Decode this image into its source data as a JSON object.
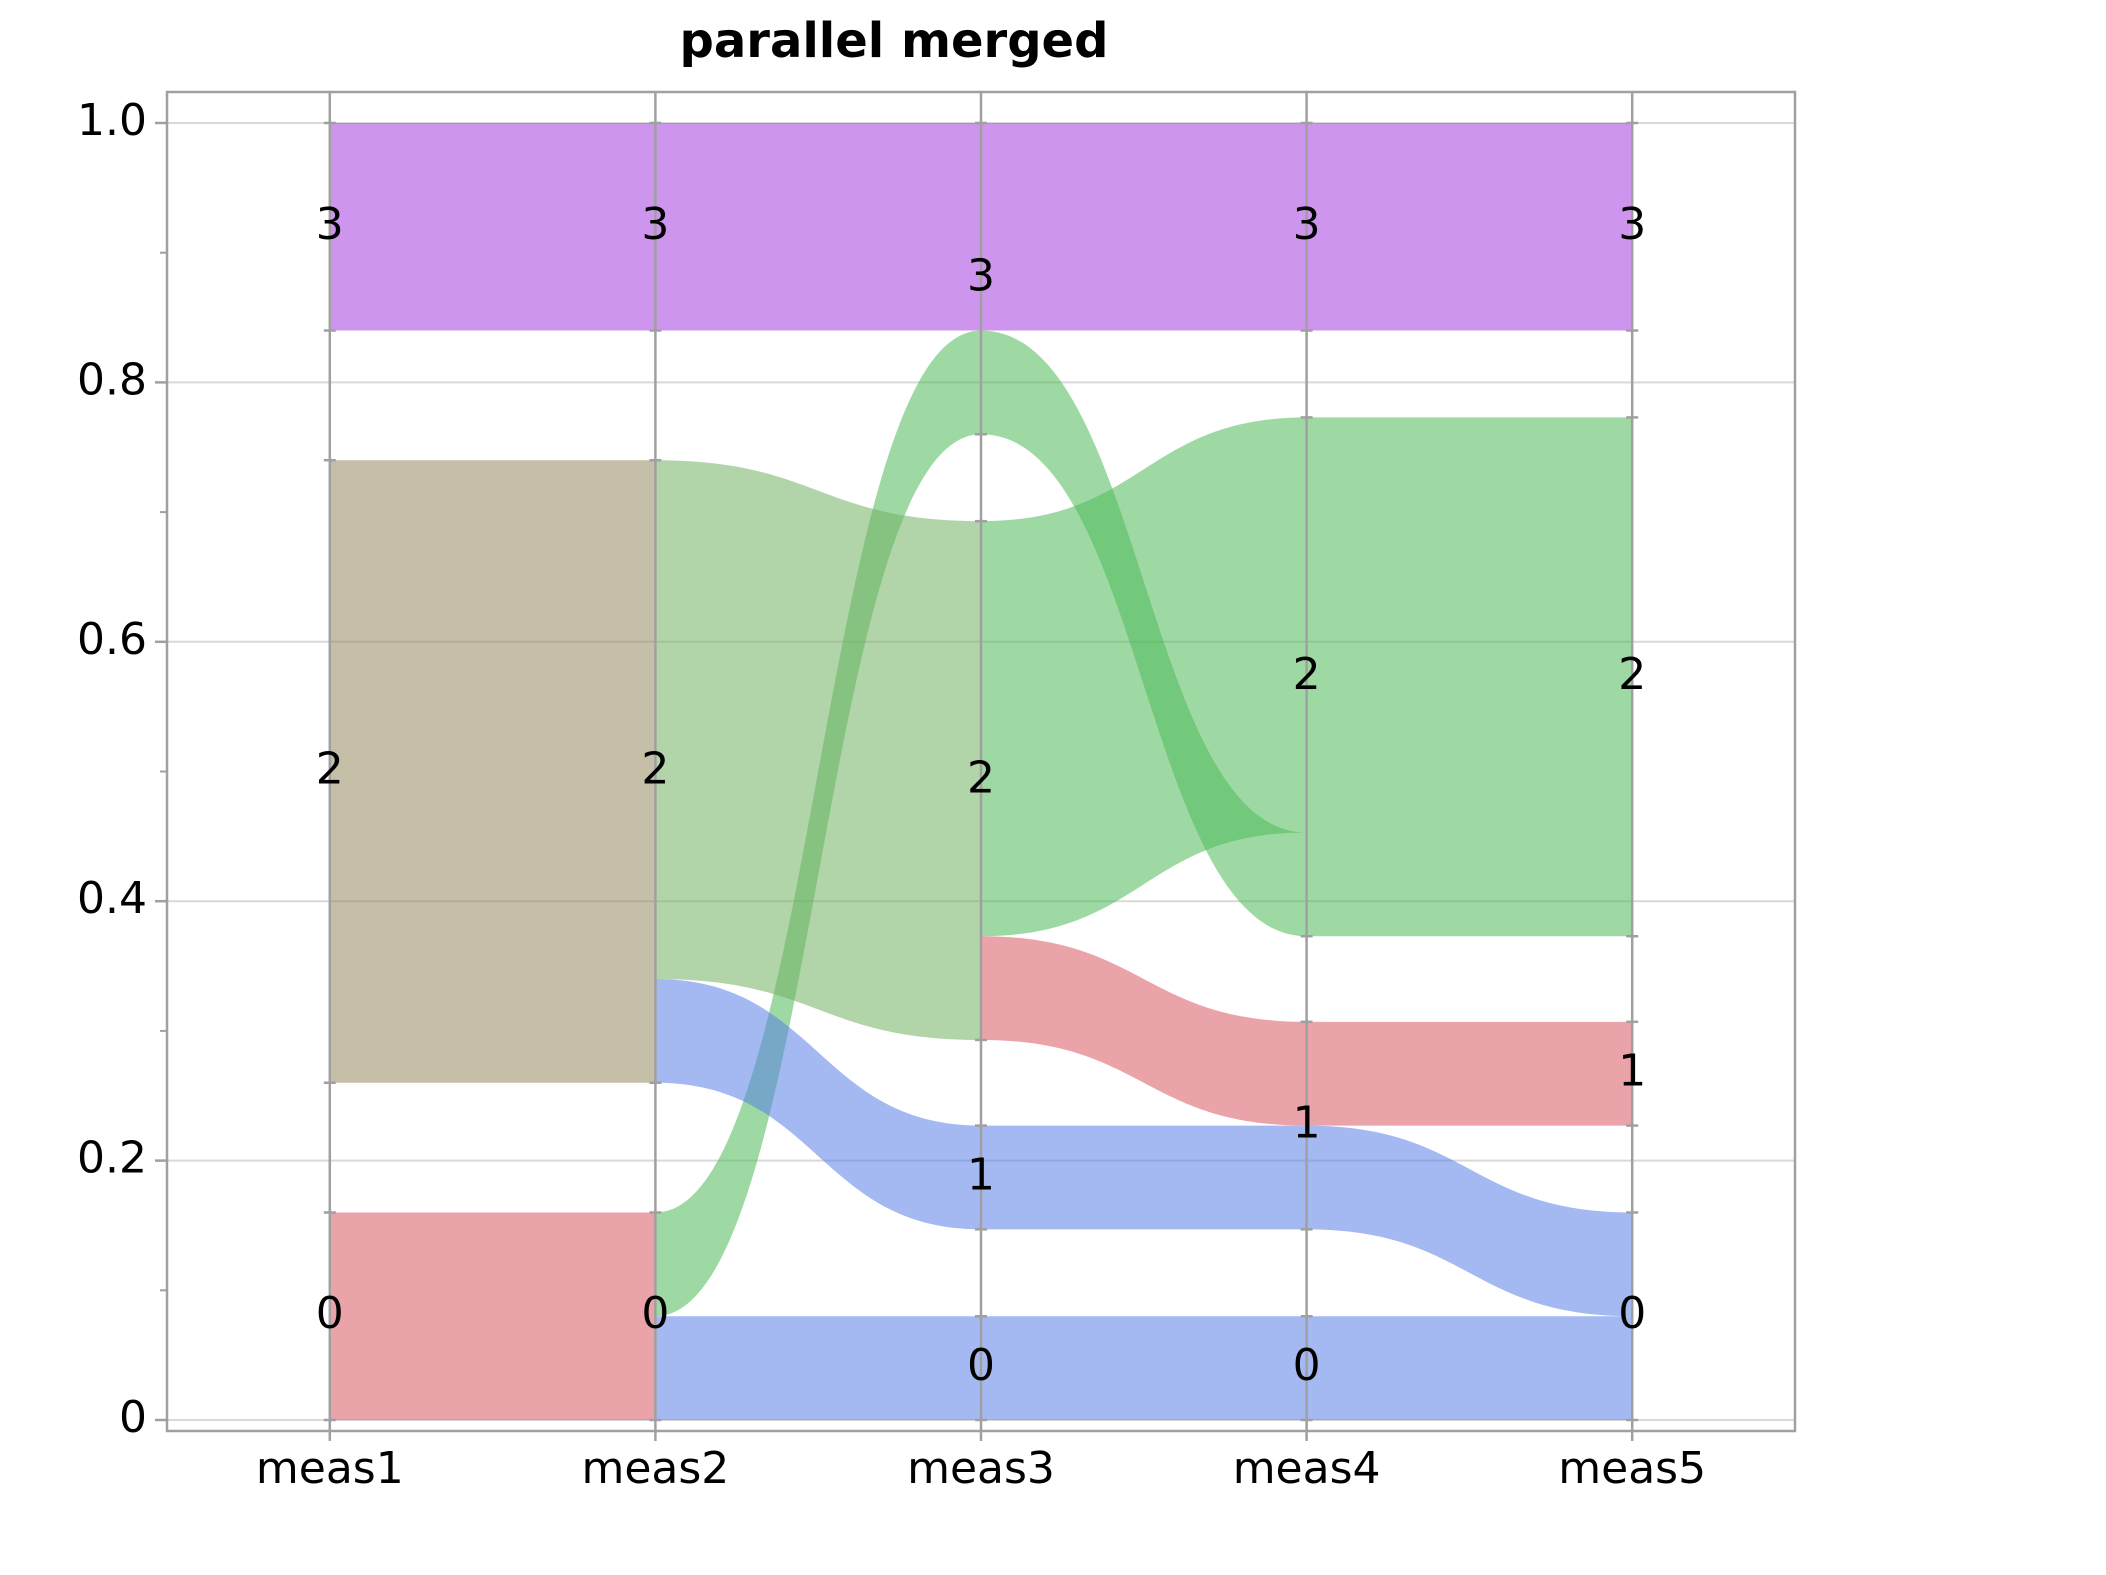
{
  "chart_data": {
    "type": "parallel-sets",
    "title": "parallel merged",
    "ylim": [
      0,
      1
    ],
    "yticks": [
      0,
      0.2,
      0.4,
      0.6,
      0.8,
      {
        "value": 1,
        "label": "1.0"
      }
    ],
    "yminorticks": [
      0.1,
      0.3,
      0.5,
      0.7,
      0.9
    ],
    "grid": true,
    "opacity": 0.55,
    "axes": [
      {
        "name": "meas1",
        "segments": [
          {
            "label": "0",
            "range": [
              0,
              0.16
            ]
          },
          {
            "label": "2",
            "range": [
              0.26,
              0.74
            ]
          },
          {
            "label": "3",
            "range": [
              0.84,
              1
            ]
          }
        ]
      },
      {
        "name": "meas2",
        "segments": [
          {
            "label": "0",
            "range": [
              0,
              0.16
            ]
          },
          {
            "label": "2",
            "range": [
              0.26,
              0.74
            ]
          },
          {
            "label": "3",
            "range": [
              0.84,
              1
            ]
          }
        ]
      },
      {
        "name": "meas3",
        "segments": [
          {
            "label": "0",
            "range": [
              0,
              0.08
            ]
          },
          {
            "label": "1",
            "range": [
              0.147,
              0.227
            ]
          },
          {
            "label": "2",
            "range": [
              0.293,
              0.693
            ]
          },
          {
            "label": "3",
            "range": [
              0.76,
              1
            ]
          }
        ]
      },
      {
        "name": "meas4",
        "segments": [
          {
            "label": "0",
            "range": [
              0,
              0.08
            ]
          },
          {
            "label": "1",
            "range": [
              0.147,
              0.307
            ]
          },
          {
            "label": "2",
            "range": [
              0.373,
              0.773
            ]
          },
          {
            "label": "3",
            "range": [
              0.84,
              1
            ]
          }
        ]
      },
      {
        "name": "meas5",
        "segments": [
          {
            "label": "0",
            "range": [
              0,
              0.16
            ]
          },
          {
            "label": "1",
            "range": [
              0.227,
              0.307
            ]
          },
          {
            "label": "2",
            "range": [
              0.373,
              0.773
            ]
          },
          {
            "label": "3",
            "range": [
              0.84,
              1
            ]
          }
        ]
      }
    ],
    "links": [
      [
        {
          "from": [
            0,
            0.16
          ],
          "to": [
            0,
            0.16
          ],
          "color": "#d95763"
        },
        {
          "from": [
            0.26,
            0.74
          ],
          "to": [
            0.26,
            0.74
          ],
          "color": "#948a5c"
        },
        {
          "from": [
            0.84,
            1
          ],
          "to": [
            0.84,
            1
          ],
          "color": "#a63ee0"
        }
      ],
      [
        {
          "from": [
            0,
            0.08
          ],
          "to": [
            0,
            0.08
          ],
          "color": "#5a80e6"
        },
        {
          "from": [
            0.08,
            0.16
          ],
          "to": [
            0.76,
            0.84
          ],
          "color": "#4fba59"
        },
        {
          "from": [
            0.26,
            0.34
          ],
          "to": [
            0.147,
            0.227
          ],
          "color": "#5a80e6"
        },
        {
          "from": [
            0.34,
            0.74
          ],
          "to": [
            0.293,
            0.693
          ],
          "color": "#72b062"
        },
        {
          "from": [
            0.84,
            1
          ],
          "to": [
            0.84,
            1
          ],
          "color": "#a63ee0"
        }
      ],
      [
        {
          "from": [
            0,
            0.08
          ],
          "to": [
            0,
            0.08
          ],
          "color": "#5a80e6"
        },
        {
          "from": [
            0.147,
            0.227
          ],
          "to": [
            0.147,
            0.227
          ],
          "color": "#5a80e6"
        },
        {
          "from": [
            0.293,
            0.373
          ],
          "to": [
            0.227,
            0.307
          ],
          "color": "#d95763"
        },
        {
          "from": [
            0.373,
            0.693
          ],
          "to": [
            0.453,
            0.773
          ],
          "color": "#4fba59"
        },
        {
          "from": [
            0.76,
            0.84
          ],
          "to": [
            0.373,
            0.453
          ],
          "color": "#4fba59"
        },
        {
          "from": [
            0.84,
            1
          ],
          "to": [
            0.84,
            1
          ],
          "color": "#a63ee0"
        }
      ],
      [
        {
          "from": [
            0,
            0.08
          ],
          "to": [
            0,
            0.08
          ],
          "color": "#5a80e6"
        },
        {
          "from": [
            0.147,
            0.227
          ],
          "to": [
            0.08,
            0.16
          ],
          "color": "#5a80e6"
        },
        {
          "from": [
            0.227,
            0.307
          ],
          "to": [
            0.227,
            0.307
          ],
          "color": "#d95763"
        },
        {
          "from": [
            0.373,
            0.773
          ],
          "to": [
            0.373,
            0.773
          ],
          "color": "#4fba59"
        },
        {
          "from": [
            0.84,
            1
          ],
          "to": [
            0.84,
            1
          ],
          "color": "#a63ee0"
        }
      ]
    ]
  }
}
